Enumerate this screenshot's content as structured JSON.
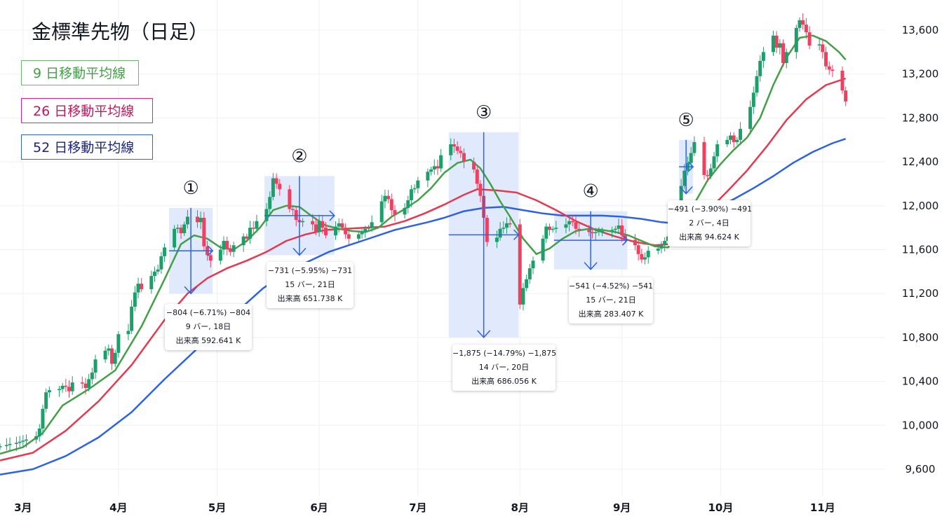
{
  "chart_data": {
    "type": "candlestick",
    "title": "金標準先物（日足）",
    "ylim": [
      9450,
      13850
    ],
    "y_ticks": [
      9600,
      10000,
      10400,
      10800,
      11200,
      11600,
      12000,
      12400,
      12800,
      13200,
      13600
    ],
    "y_tick_labels": [
      "9,600",
      "10,000",
      "10,400",
      "10,800",
      "11,200",
      "11,600",
      "12,000",
      "12,400",
      "12,800",
      "13,200",
      "13,600"
    ],
    "months": [
      {
        "label": "3月",
        "day": 2
      },
      {
        "label": "4月",
        "day": 31
      },
      {
        "label": "5月",
        "day": 61
      },
      {
        "label": "6月",
        "day": 92
      },
      {
        "label": "7月",
        "day": 122
      },
      {
        "label": "8月",
        "day": 153
      },
      {
        "label": "9月",
        "day": 184
      },
      {
        "label": "10月",
        "day": 214
      },
      {
        "label": "11月",
        "day": 245
      }
    ],
    "x_range_days": [
      -5,
      264
    ],
    "closes": [
      [
        -5,
        9810
      ],
      [
        -3,
        9820
      ],
      [
        -2,
        9830
      ],
      [
        0,
        9840
      ],
      [
        1,
        9850
      ],
      [
        2,
        9860
      ],
      [
        3,
        9870
      ],
      [
        6,
        9900
      ],
      [
        7,
        9970
      ],
      [
        8,
        10150
      ],
      [
        9,
        10300
      ],
      [
        10,
        10320
      ],
      [
        13,
        10330
      ],
      [
        14,
        10360
      ],
      [
        15,
        10350
      ],
      [
        16,
        10310
      ],
      [
        17,
        10390
      ],
      [
        20,
        10380
      ],
      [
        21,
        10340
      ],
      [
        22,
        10420
      ],
      [
        23,
        10480
      ],
      [
        24,
        10600
      ],
      [
        27,
        10680
      ],
      [
        28,
        10700
      ],
      [
        29,
        10560
      ],
      [
        30,
        10660
      ],
      [
        31,
        10830
      ],
      [
        34,
        10860
      ],
      [
        35,
        11080
      ],
      [
        36,
        11210
      ],
      [
        37,
        11290
      ],
      [
        38,
        11240
      ],
      [
        41,
        11360
      ],
      [
        42,
        11400
      ],
      [
        43,
        11420
      ],
      [
        44,
        11540
      ],
      [
        45,
        11620
      ],
      [
        48,
        11790
      ],
      [
        49,
        11800
      ],
      [
        50,
        11750
      ],
      [
        51,
        11830
      ],
      [
        52,
        11900
      ],
      [
        55,
        11850
      ],
      [
        56,
        11890
      ],
      [
        57,
        11630
      ],
      [
        58,
        11550
      ],
      [
        59,
        11500
      ],
      [
        62,
        11600
      ],
      [
        63,
        11680
      ],
      [
        64,
        11610
      ],
      [
        65,
        11580
      ],
      [
        66,
        11640
      ],
      [
        69,
        11720
      ],
      [
        70,
        11700
      ],
      [
        71,
        11800
      ],
      [
        72,
        11790
      ],
      [
        73,
        11860
      ],
      [
        76,
        11970
      ],
      [
        77,
        12080
      ],
      [
        78,
        12250
      ],
      [
        79,
        12200
      ],
      [
        80,
        12150
      ],
      [
        83,
        11970
      ],
      [
        84,
        11960
      ],
      [
        85,
        11870
      ],
      [
        86,
        11850
      ],
      [
        87,
        11860
      ],
      [
        90,
        11830
      ],
      [
        91,
        11760
      ],
      [
        92,
        11860
      ],
      [
        93,
        11800
      ],
      [
        94,
        11730
      ],
      [
        97,
        11810
      ],
      [
        98,
        11840
      ],
      [
        99,
        11800
      ],
      [
        100,
        11740
      ],
      [
        101,
        11700
      ],
      [
        104,
        11740
      ],
      [
        105,
        11760
      ],
      [
        106,
        11790
      ],
      [
        107,
        11800
      ],
      [
        108,
        11850
      ],
      [
        111,
        12040
      ],
      [
        112,
        12090
      ],
      [
        113,
        12060
      ],
      [
        114,
        11960
      ],
      [
        115,
        11920
      ],
      [
        118,
        11980
      ],
      [
        119,
        12050
      ],
      [
        120,
        12150
      ],
      [
        121,
        12160
      ],
      [
        122,
        12230
      ],
      [
        125,
        12310
      ],
      [
        126,
        12330
      ],
      [
        127,
        12360
      ],
      [
        128,
        12340
      ],
      [
        129,
        12460
      ],
      [
        132,
        12560
      ],
      [
        133,
        12540
      ],
      [
        134,
        12500
      ],
      [
        135,
        12480
      ],
      [
        136,
        12400
      ],
      [
        139,
        12330
      ],
      [
        140,
        12200
      ],
      [
        141,
        12090
      ],
      [
        142,
        11890
      ],
      [
        143,
        11670
      ],
      [
        146,
        11710
      ],
      [
        147,
        11790
      ],
      [
        148,
        11800
      ],
      [
        149,
        11840
      ],
      [
        150,
        11830
      ],
      [
        153,
        11100
      ],
      [
        154,
        11250
      ],
      [
        155,
        11330
      ],
      [
        156,
        11430
      ],
      [
        157,
        11500
      ],
      [
        160,
        11700
      ],
      [
        161,
        11810
      ],
      [
        162,
        11780
      ],
      [
        163,
        11790
      ],
      [
        164,
        11800
      ],
      [
        167,
        11830
      ],
      [
        168,
        11860
      ],
      [
        169,
        11850
      ],
      [
        170,
        11790
      ],
      [
        171,
        11780
      ],
      [
        174,
        11760
      ],
      [
        175,
        11750
      ],
      [
        176,
        11760
      ],
      [
        177,
        11770
      ],
      [
        178,
        11770
      ],
      [
        181,
        11780
      ],
      [
        182,
        11790
      ],
      [
        183,
        11820
      ],
      [
        184,
        11730
      ],
      [
        185,
        11690
      ],
      [
        188,
        11640
      ],
      [
        189,
        11560
      ],
      [
        190,
        11510
      ],
      [
        191,
        11530
      ],
      [
        192,
        11590
      ],
      [
        195,
        11610
      ],
      [
        196,
        11640
      ],
      [
        197,
        11680
      ],
      [
        198,
        11720
      ],
      [
        199,
        11790
      ],
      [
        202,
        12180
      ],
      [
        203,
        12320
      ],
      [
        204,
        12390
      ],
      [
        205,
        12480
      ],
      [
        206,
        12580
      ],
      [
        209,
        12280
      ],
      [
        210,
        12270
      ],
      [
        211,
        12340
      ],
      [
        212,
        12450
      ],
      [
        213,
        12560
      ],
      [
        216,
        12600
      ],
      [
        217,
        12640
      ],
      [
        218,
        12580
      ],
      [
        219,
        12600
      ],
      [
        220,
        12700
      ],
      [
        223,
        12900
      ],
      [
        224,
        13030
      ],
      [
        225,
        13180
      ],
      [
        226,
        13320
      ],
      [
        227,
        13400
      ],
      [
        230,
        13550
      ],
      [
        231,
        13440
      ],
      [
        232,
        13480
      ],
      [
        233,
        13300
      ],
      [
        234,
        13400
      ],
      [
        237,
        13620
      ],
      [
        238,
        13690
      ],
      [
        239,
        13650
      ],
      [
        240,
        13580
      ],
      [
        241,
        13460
      ],
      [
        244,
        13470
      ],
      [
        245,
        13400
      ],
      [
        246,
        13270
      ],
      [
        247,
        13240
      ],
      [
        248,
        13230
      ],
      [
        251,
        13050
      ],
      [
        252,
        12950
      ]
    ],
    "series": [
      {
        "name": "9 日移動平均線",
        "color": "#43a047"
      },
      {
        "name": "26 日移動平均線",
        "color": "#e53950"
      },
      {
        "name": "52 日移動平均線",
        "color": "#2d62e8"
      }
    ],
    "ma9": [
      [
        -5,
        9740
      ],
      [
        2,
        9800
      ],
      [
        8,
        9930
      ],
      [
        14,
        10180
      ],
      [
        22,
        10330
      ],
      [
        30,
        10500
      ],
      [
        38,
        10900
      ],
      [
        45,
        11330
      ],
      [
        50,
        11650
      ],
      [
        54,
        11730
      ],
      [
        58,
        11700
      ],
      [
        62,
        11620
      ],
      [
        66,
        11600
      ],
      [
        70,
        11680
      ],
      [
        74,
        11800
      ],
      [
        78,
        11960
      ],
      [
        82,
        12000
      ],
      [
        86,
        11990
      ],
      [
        90,
        11900
      ],
      [
        94,
        11820
      ],
      [
        98,
        11790
      ],
      [
        102,
        11770
      ],
      [
        106,
        11760
      ],
      [
        110,
        11800
      ],
      [
        114,
        11900
      ],
      [
        118,
        11970
      ],
      [
        122,
        12050
      ],
      [
        126,
        12160
      ],
      [
        130,
        12300
      ],
      [
        134,
        12390
      ],
      [
        138,
        12420
      ],
      [
        141,
        12340
      ],
      [
        144,
        12200
      ],
      [
        147,
        12040
      ],
      [
        150,
        11900
      ],
      [
        154,
        11700
      ],
      [
        158,
        11560
      ],
      [
        162,
        11610
      ],
      [
        166,
        11700
      ],
      [
        170,
        11770
      ],
      [
        174,
        11790
      ],
      [
        178,
        11780
      ],
      [
        182,
        11760
      ],
      [
        186,
        11730
      ],
      [
        190,
        11680
      ],
      [
        194,
        11630
      ],
      [
        198,
        11620
      ],
      [
        202,
        11760
      ],
      [
        206,
        12020
      ],
      [
        210,
        12230
      ],
      [
        214,
        12380
      ],
      [
        218,
        12510
      ],
      [
        222,
        12620
      ],
      [
        226,
        12800
      ],
      [
        230,
        13100
      ],
      [
        234,
        13350
      ],
      [
        238,
        13530
      ],
      [
        242,
        13550
      ],
      [
        246,
        13500
      ],
      [
        250,
        13400
      ],
      [
        252,
        13330
      ]
    ],
    "ma26": [
      [
        -5,
        9680
      ],
      [
        5,
        9750
      ],
      [
        15,
        9950
      ],
      [
        25,
        10220
      ],
      [
        35,
        10550
      ],
      [
        45,
        10960
      ],
      [
        52,
        11200
      ],
      [
        58,
        11340
      ],
      [
        64,
        11430
      ],
      [
        70,
        11500
      ],
      [
        76,
        11580
      ],
      [
        82,
        11680
      ],
      [
        88,
        11740
      ],
      [
        94,
        11780
      ],
      [
        100,
        11790
      ],
      [
        106,
        11800
      ],
      [
        112,
        11810
      ],
      [
        118,
        11860
      ],
      [
        124,
        11930
      ],
      [
        130,
        12010
      ],
      [
        136,
        12100
      ],
      [
        140,
        12150
      ],
      [
        146,
        12140
      ],
      [
        152,
        12120
      ],
      [
        158,
        12050
      ],
      [
        164,
        11960
      ],
      [
        170,
        11860
      ],
      [
        176,
        11780
      ],
      [
        182,
        11720
      ],
      [
        188,
        11670
      ],
      [
        194,
        11640
      ],
      [
        198,
        11650
      ],
      [
        204,
        11790
      ],
      [
        210,
        11950
      ],
      [
        216,
        12130
      ],
      [
        222,
        12320
      ],
      [
        228,
        12540
      ],
      [
        234,
        12780
      ],
      [
        240,
        12970
      ],
      [
        246,
        13100
      ],
      [
        252,
        13160
      ]
    ],
    "ma52": [
      [
        -5,
        9550
      ],
      [
        5,
        9600
      ],
      [
        15,
        9720
      ],
      [
        25,
        9890
      ],
      [
        35,
        10120
      ],
      [
        45,
        10420
      ],
      [
        55,
        10700
      ],
      [
        65,
        10980
      ],
      [
        75,
        11250
      ],
      [
        85,
        11440
      ],
      [
        95,
        11580
      ],
      [
        105,
        11680
      ],
      [
        115,
        11780
      ],
      [
        125,
        11850
      ],
      [
        130,
        11890
      ],
      [
        136,
        11950
      ],
      [
        142,
        11980
      ],
      [
        148,
        11990
      ],
      [
        154,
        11960
      ],
      [
        160,
        11930
      ],
      [
        166,
        11910
      ],
      [
        172,
        11910
      ],
      [
        178,
        11910
      ],
      [
        184,
        11900
      ],
      [
        190,
        11880
      ],
      [
        196,
        11850
      ],
      [
        200,
        11840
      ],
      [
        206,
        11900
      ],
      [
        212,
        11970
      ],
      [
        218,
        12060
      ],
      [
        224,
        12160
      ],
      [
        230,
        12270
      ],
      [
        236,
        12390
      ],
      [
        242,
        12490
      ],
      [
        248,
        12570
      ],
      [
        252,
        12610
      ]
    ],
    "annotations": [
      {
        "marker": "①",
        "x1": 47,
        "x2": 59,
        "y_top": 11980,
        "y_bot": 11200,
        "direction": "down",
        "lines": [
          "−804 (−6.71%) −804",
          "9 バー, 18日",
          "出来高 592.641 K"
        ]
      },
      {
        "marker": "②",
        "x1": 76,
        "x2": 96,
        "y_top": 12270,
        "y_bot": 11550,
        "direction": "down",
        "lines": [
          "−731 (−5.95%) −731",
          "15 バー, 21日",
          "出来高 651.738 K"
        ]
      },
      {
        "marker": "③",
        "x1": 132,
        "x2": 152,
        "y_top": 12670,
        "y_bot": 10800,
        "direction": "down",
        "lines": [
          "−1,875 (−14.79%) −1,875",
          "14 バー, 20日",
          "出来高 686.056 K"
        ]
      },
      {
        "marker": "④",
        "x1": 164,
        "x2": 185,
        "y_top": 11950,
        "y_bot": 11420,
        "direction": "down",
        "lines": [
          "−541 (−4.52%) −541",
          "15 バー, 21日",
          "出来高 283.407 K"
        ]
      },
      {
        "marker": "⑤",
        "x1": 202,
        "x2": 205,
        "y_top": 12600,
        "y_bot": 12110,
        "direction": "down",
        "lines": [
          "−491 (−3.90%) −491",
          "2 バー, 4日",
          "出来高 94.624 K"
        ]
      }
    ]
  },
  "title": "金標準先物（日足）",
  "legend": [
    {
      "label": "9 日移動平均線",
      "color": "#43a047",
      "border": "#66bb6a"
    },
    {
      "label": "26 日移動平均線",
      "color": "#c2185b",
      "border": "#e91e8c"
    },
    {
      "label": "52 日移動平均線",
      "color": "#1a237e",
      "border": "#2d62e8"
    }
  ],
  "colors": {
    "up": "#26a69a",
    "down": "#ef5350",
    "up_body": "#2e8b57",
    "box_fill": "#dbe6fb",
    "arrow": "#2d62e8"
  }
}
